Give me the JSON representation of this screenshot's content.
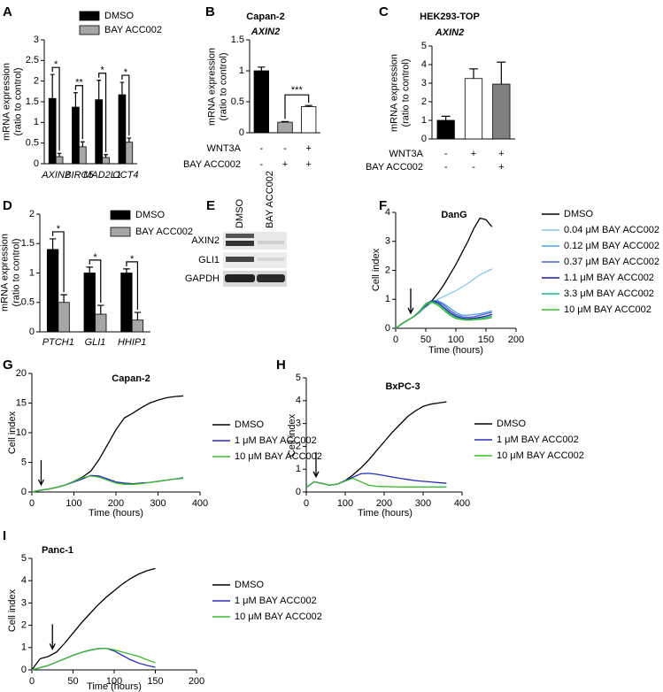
{
  "chart_data": [
    {
      "type": "bar",
      "panel": "A",
      "ylabel": [
        "mRNA expression",
        "(ratio to control)"
      ],
      "categories": [
        "AXIN2",
        "BIRC5",
        "MAD2L1",
        "OCT4"
      ],
      "series": [
        {
          "name": "DMSO",
          "color": "#000000",
          "values": [
            1.58,
            1.37,
            1.55,
            1.67
          ],
          "errors": [
            0.58,
            0.35,
            0.47,
            0.3
          ]
        },
        {
          "name": "BAY ACC002",
          "color": "#a6a6a6",
          "values": [
            0.17,
            0.41,
            0.15,
            0.52
          ],
          "errors": [
            0.08,
            0.12,
            0.07,
            0.1
          ]
        }
      ],
      "significance": [
        "*",
        "**",
        "*",
        "*"
      ],
      "ylim": [
        0,
        3
      ],
      "yticks": [
        0,
        0.5,
        1,
        1.5,
        2,
        2.5,
        3
      ]
    },
    {
      "type": "bar",
      "panel": "B",
      "title": "Capan-2",
      "subtitle": "AXIN2",
      "ylabel": [
        "mRNA expression",
        "(ratio to control)"
      ],
      "values": [
        1.0,
        0.17,
        0.42
      ],
      "errors": [
        0.06,
        0.01,
        0.02
      ],
      "colors": [
        "#000000",
        "#a6a6a6",
        "#ffffff"
      ],
      "conditions": [
        {
          "name": "WNT3A",
          "values": [
            "-",
            "-",
            "+"
          ]
        },
        {
          "name": "BAY ACC002",
          "values": [
            "-",
            "+",
            "+"
          ]
        }
      ],
      "significance": [
        null,
        null,
        "***"
      ],
      "ylim": [
        0,
        1.5
      ],
      "yticks": [
        0,
        0.5,
        1,
        1.5
      ]
    },
    {
      "type": "bar",
      "panel": "C",
      "title": "HEK293-TOP",
      "subtitle": "AXIN2",
      "ylabel": [
        "mRNA expression",
        "(ratio to control)"
      ],
      "values": [
        1.0,
        3.25,
        2.95
      ],
      "errors": [
        0.22,
        0.52,
        1.18
      ],
      "colors": [
        "#000000",
        "#ffffff",
        "#808080"
      ],
      "conditions": [
        {
          "name": "WNT3A",
          "values": [
            "-",
            "+",
            "+"
          ]
        },
        {
          "name": "BAY ACC002",
          "values": [
            "-",
            "-",
            "+"
          ]
        }
      ],
      "ylim": [
        0,
        5
      ],
      "yticks": [
        0,
        1,
        2,
        3,
        4,
        5
      ]
    },
    {
      "type": "bar",
      "panel": "D",
      "ylabel": [
        "mRNA expression",
        "(ratio to control)"
      ],
      "categories": [
        "PTCH1",
        "GLI1",
        "HHIP1"
      ],
      "series": [
        {
          "name": "DMSO",
          "color": "#000000",
          "values": [
            1.4,
            1.0,
            1.0
          ],
          "errors": [
            0.18,
            0.1,
            0.07
          ]
        },
        {
          "name": "BAY ACC002",
          "color": "#a6a6a6",
          "values": [
            0.5,
            0.3,
            0.2
          ],
          "errors": [
            0.13,
            0.15,
            0.13
          ]
        }
      ],
      "significance": [
        "*",
        "*",
        "*"
      ],
      "ylim": [
        0,
        2
      ],
      "yticks": [
        0,
        0.5,
        1,
        1.5,
        2
      ]
    },
    {
      "type": "line",
      "panel": "F",
      "title": "DanG",
      "xlabel": "Time (hours)",
      "ylabel": [
        "Cell index"
      ],
      "arrow_x": 25,
      "x": [
        0,
        10,
        20,
        30,
        40,
        50,
        60,
        70,
        80,
        90,
        100,
        110,
        120,
        130,
        140,
        150,
        160
      ],
      "series": [
        {
          "name": "DMSO",
          "color": "#000000",
          "values": [
            0,
            0.15,
            0.28,
            0.4,
            0.55,
            0.75,
            0.95,
            1.2,
            1.5,
            1.85,
            2.2,
            2.6,
            3.0,
            3.45,
            3.8,
            3.75,
            3.5
          ]
        },
        {
          "name": "0.04 μM BAY ACC002",
          "color": "#8ec6ea",
          "values": [
            0,
            0.15,
            0.28,
            0.4,
            0.55,
            0.72,
            0.88,
            1.0,
            1.1,
            1.2,
            1.3,
            1.42,
            1.55,
            1.7,
            1.85,
            1.95,
            2.05
          ]
        },
        {
          "name": "0.12 μM BAY ACC002",
          "color": "#4f9de0",
          "values": [
            0,
            0.15,
            0.28,
            0.4,
            0.58,
            0.8,
            0.95,
            0.95,
            0.85,
            0.7,
            0.55,
            0.45,
            0.45,
            0.48,
            0.5,
            0.55,
            0.6
          ]
        },
        {
          "name": "0.37 μM BAY ACC002",
          "color": "#4a5ed6",
          "values": [
            0,
            0.15,
            0.28,
            0.4,
            0.58,
            0.82,
            0.95,
            0.92,
            0.8,
            0.62,
            0.48,
            0.4,
            0.38,
            0.4,
            0.45,
            0.5,
            0.55
          ]
        },
        {
          "name": "1.1 μM BAY ACC002",
          "color": "#1a1a9a",
          "values": [
            0,
            0.15,
            0.28,
            0.4,
            0.6,
            0.85,
            0.95,
            0.88,
            0.72,
            0.55,
            0.42,
            0.35,
            0.33,
            0.35,
            0.38,
            0.42,
            0.48
          ]
        },
        {
          "name": "3.3 μM BAY ACC002",
          "color": "#2aaf8a",
          "values": [
            0,
            0.15,
            0.28,
            0.4,
            0.6,
            0.85,
            0.92,
            0.85,
            0.68,
            0.5,
            0.38,
            0.32,
            0.3,
            0.31,
            0.34,
            0.37,
            0.42
          ]
        },
        {
          "name": "10 μM BAY ACC002",
          "color": "#3cb832",
          "values": [
            0,
            0.15,
            0.28,
            0.4,
            0.6,
            0.82,
            0.9,
            0.8,
            0.62,
            0.45,
            0.34,
            0.3,
            0.28,
            0.29,
            0.31,
            0.33,
            0.37
          ]
        }
      ],
      "xlim": [
        0,
        200
      ],
      "xticks": [
        0,
        50,
        100,
        150,
        200
      ],
      "ylim": [
        0,
        4
      ],
      "yticks": [
        0,
        1,
        2,
        3,
        4
      ]
    },
    {
      "type": "line",
      "panel": "G",
      "title": "Capan-2",
      "xlabel": "Time (hours)",
      "ylabel": [
        "Cell index"
      ],
      "arrow_x": 22,
      "x": [
        0,
        20,
        40,
        60,
        80,
        100,
        120,
        140,
        160,
        180,
        200,
        220,
        240,
        260,
        280,
        300,
        320,
        340,
        360
      ],
      "series": [
        {
          "name": "DMSO",
          "color": "#000000",
          "values": [
            0,
            0.3,
            0.5,
            0.8,
            1.2,
            1.8,
            2.5,
            3.5,
            5.5,
            8,
            10.5,
            12.5,
            13.3,
            14.2,
            15,
            15.5,
            15.9,
            16.1,
            16.2
          ]
        },
        {
          "name": "1 μM BAY ACC002",
          "color": "#2b2bb8",
          "values": [
            0,
            0.3,
            0.5,
            0.8,
            1.2,
            1.7,
            2.2,
            2.8,
            2.7,
            2.2,
            1.7,
            1.5,
            1.4,
            1.5,
            1.6,
            1.8,
            2.0,
            2.2,
            2.4
          ]
        },
        {
          "name": "10 μM BAY ACC002",
          "color": "#3cb832",
          "values": [
            0,
            0.3,
            0.5,
            0.8,
            1.2,
            1.8,
            2.4,
            2.7,
            2.5,
            2.0,
            1.5,
            1.3,
            1.3,
            1.4,
            1.6,
            1.8,
            2.0,
            2.2,
            2.3
          ]
        }
      ],
      "xlim": [
        0,
        400
      ],
      "xticks": [
        0,
        100,
        200,
        300,
        400
      ],
      "ylim": [
        0,
        20
      ],
      "yticks": [
        0,
        5,
        10,
        15,
        20
      ]
    },
    {
      "type": "line",
      "panel": "H",
      "title": "BxPC-3",
      "xlabel": "Time (hours)",
      "ylabel": [
        "Cell index"
      ],
      "arrow_x": 25,
      "x": [
        0,
        20,
        40,
        60,
        80,
        100,
        120,
        140,
        160,
        180,
        200,
        220,
        240,
        260,
        280,
        300,
        320,
        340,
        360
      ],
      "series": [
        {
          "name": "DMSO",
          "color": "#000000",
          "values": [
            0.2,
            0.45,
            0.38,
            0.3,
            0.35,
            0.5,
            0.75,
            1.05,
            1.4,
            1.8,
            2.2,
            2.6,
            2.95,
            3.3,
            3.55,
            3.75,
            3.85,
            3.9,
            3.95
          ]
        },
        {
          "name": "1 μM BAY ACC002",
          "color": "#2b2bb8",
          "values": [
            0.2,
            0.45,
            0.38,
            0.3,
            0.35,
            0.5,
            0.65,
            0.8,
            0.82,
            0.78,
            0.72,
            0.66,
            0.6,
            0.55,
            0.5,
            0.47,
            0.44,
            0.41,
            0.38
          ]
        },
        {
          "name": "10 μM BAY ACC002",
          "color": "#3cb832",
          "values": [
            0.2,
            0.45,
            0.38,
            0.3,
            0.35,
            0.48,
            0.6,
            0.45,
            0.3,
            0.25,
            0.24,
            0.23,
            0.22,
            0.22,
            0.22,
            0.22,
            0.22,
            0.22,
            0.22
          ]
        }
      ],
      "xlim": [
        0,
        400
      ],
      "xticks": [
        0,
        100,
        200,
        300,
        400
      ],
      "ylim": [
        0,
        5
      ],
      "yticks": [
        0,
        1,
        2,
        3,
        4,
        5
      ]
    },
    {
      "type": "line",
      "panel": "I",
      "title": "Panc-1",
      "xlabel": "Time (hours)",
      "ylabel": [
        "Cell index"
      ],
      "arrow_x": 25,
      "x": [
        0,
        10,
        20,
        30,
        40,
        50,
        60,
        70,
        80,
        90,
        100,
        110,
        120,
        130,
        140,
        150
      ],
      "series": [
        {
          "name": "DMSO",
          "color": "#000000",
          "values": [
            0,
            0.5,
            0.6,
            0.8,
            1.2,
            1.65,
            2.1,
            2.5,
            2.9,
            3.25,
            3.55,
            3.85,
            4.1,
            4.3,
            4.45,
            4.55
          ]
        },
        {
          "name": "1 μM BAY ACC002",
          "color": "#2b2bb8",
          "values": [
            0,
            0.1,
            0.2,
            0.35,
            0.5,
            0.65,
            0.78,
            0.88,
            0.95,
            0.97,
            0.85,
            0.65,
            0.45,
            0.3,
            0.2,
            0.12
          ]
        },
        {
          "name": "10 μM BAY ACC002",
          "color": "#3cb832",
          "values": [
            0,
            0.1,
            0.2,
            0.35,
            0.5,
            0.65,
            0.78,
            0.88,
            0.95,
            0.97,
            0.9,
            0.8,
            0.7,
            0.6,
            0.45,
            0.32
          ]
        }
      ],
      "xlim": [
        0,
        200
      ],
      "xticks": [
        0,
        50,
        100,
        150,
        200
      ],
      "ylim": [
        0,
        5
      ],
      "yticks": [
        0,
        1,
        2,
        3,
        4,
        5
      ]
    }
  ],
  "blot": {
    "panel": "E",
    "columns": [
      "DMSO",
      "BAY ACC002"
    ],
    "rows": [
      "AXIN2",
      "GLI1",
      "GAPDH"
    ]
  }
}
